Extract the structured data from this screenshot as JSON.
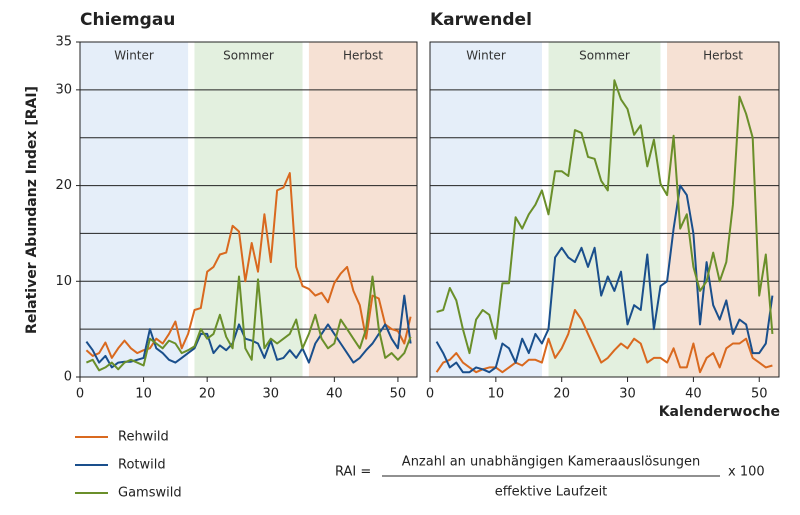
{
  "chart_data": [
    {
      "type": "line",
      "title": "Chiemgau",
      "ylabel": "Relativer Abundanz Index [RAI]",
      "xlim": [
        0,
        53
      ],
      "ylim": [
        0,
        35
      ],
      "xticks": [
        0,
        10,
        20,
        30,
        40,
        50
      ],
      "yticks": [
        0,
        10,
        20,
        30,
        35
      ],
      "grid_lines": [
        5,
        10,
        15,
        20,
        25,
        30
      ],
      "bands": [
        {
          "label": "Winter",
          "from": 0,
          "to": 17,
          "color": "#e5eef9"
        },
        {
          "label": "Sommer",
          "from": 18,
          "to": 35,
          "color": "#e3f0df"
        },
        {
          "label": "Herbst",
          "from": 36,
          "to": 53,
          "color": "#f6e1d4"
        }
      ],
      "x": [
        1,
        2,
        3,
        4,
        5,
        6,
        7,
        8,
        9,
        10,
        11,
        12,
        13,
        14,
        15,
        16,
        17,
        18,
        19,
        20,
        21,
        22,
        23,
        24,
        25,
        26,
        27,
        28,
        29,
        30,
        31,
        32,
        33,
        34,
        35,
        36,
        37,
        38,
        39,
        40,
        41,
        42,
        43,
        44,
        45,
        46,
        47,
        48,
        49,
        50,
        51,
        52
      ],
      "series": [
        {
          "name": "Rehwild",
          "color": "#d9691f",
          "values": [
            2.8,
            2.2,
            2.5,
            3.6,
            2.0,
            3.0,
            3.8,
            3.0,
            2.5,
            2.8,
            3.0,
            4.0,
            3.5,
            4.5,
            5.8,
            3.0,
            4.5,
            7.0,
            7.2,
            11.0,
            11.5,
            12.8,
            13.0,
            15.8,
            15.2,
            10.0,
            14.0,
            11.0,
            17.0,
            12.0,
            19.5,
            19.8,
            21.3,
            11.5,
            9.5,
            9.2,
            8.5,
            8.8,
            7.8,
            9.8,
            10.8,
            11.5,
            9.0,
            7.5,
            4.0,
            8.5,
            8.2,
            5.5,
            5.0,
            4.8,
            3.5,
            6.3
          ]
        },
        {
          "name": "Rotwild",
          "color": "#1a4f8c",
          "values": [
            3.7,
            2.8,
            1.5,
            2.2,
            1.0,
            1.5,
            1.6,
            1.6,
            1.8,
            2.0,
            5.0,
            3.0,
            2.5,
            1.8,
            1.5,
            2.0,
            2.5,
            3.0,
            4.5,
            4.5,
            2.5,
            3.3,
            2.8,
            3.5,
            5.5,
            4.0,
            3.8,
            3.5,
            2.0,
            3.8,
            1.8,
            2.0,
            2.8,
            2.0,
            3.0,
            1.5,
            3.5,
            4.5,
            5.5,
            4.5,
            3.5,
            2.5,
            1.5,
            2.0,
            2.8,
            3.5,
            4.5,
            5.5,
            4.0,
            3.0,
            8.5,
            3.5
          ]
        },
        {
          "name": "Gamswild",
          "color": "#6a8f2a",
          "values": [
            1.5,
            1.8,
            0.7,
            1.0,
            1.5,
            0.8,
            1.5,
            1.8,
            1.5,
            1.2,
            4.0,
            3.5,
            3.0,
            3.8,
            3.5,
            2.5,
            2.8,
            3.2,
            5.0,
            4.0,
            4.5,
            6.5,
            4.2,
            3.0,
            10.5,
            3.0,
            1.8,
            10.2,
            3.0,
            4.0,
            3.5,
            4.0,
            4.5,
            6.0,
            3.0,
            4.5,
            6.5,
            4.0,
            3.0,
            3.5,
            6.0,
            5.0,
            4.0,
            3.0,
            5.0,
            10.5,
            5.0,
            2.0,
            2.5,
            1.8,
            2.5,
            4.2
          ]
        }
      ]
    },
    {
      "type": "line",
      "title": "Karwendel",
      "xlabel": "Kalenderwoche",
      "xlim": [
        0,
        53
      ],
      "ylim": [
        0,
        35
      ],
      "xticks": [
        0,
        10,
        20,
        30,
        40,
        50
      ],
      "grid_lines": [
        5,
        10,
        15,
        20,
        25,
        30
      ],
      "bands": [
        {
          "label": "Winter",
          "from": 0,
          "to": 17,
          "color": "#e5eef9"
        },
        {
          "label": "Sommer",
          "from": 18,
          "to": 35,
          "color": "#e3f0df"
        },
        {
          "label": "Herbst",
          "from": 36,
          "to": 53,
          "color": "#f6e1d4"
        }
      ],
      "x": [
        1,
        2,
        3,
        4,
        5,
        6,
        7,
        8,
        9,
        10,
        11,
        12,
        13,
        14,
        15,
        16,
        17,
        18,
        19,
        20,
        21,
        22,
        23,
        24,
        25,
        26,
        27,
        28,
        29,
        30,
        31,
        32,
        33,
        34,
        35,
        36,
        37,
        38,
        39,
        40,
        41,
        42,
        43,
        44,
        45,
        46,
        47,
        48,
        49,
        50,
        51,
        52
      ],
      "series": [
        {
          "name": "Rehwild",
          "color": "#d9691f",
          "values": [
            0.5,
            1.5,
            1.8,
            2.5,
            1.5,
            1.0,
            0.5,
            0.8,
            1.0,
            1.0,
            0.5,
            1.0,
            1.5,
            1.2,
            1.8,
            1.8,
            1.5,
            4.0,
            2.0,
            3.0,
            4.5,
            7.0,
            6.0,
            4.5,
            3.0,
            1.5,
            2.0,
            2.8,
            3.5,
            3.0,
            4.0,
            3.5,
            1.5,
            2.0,
            2.0,
            1.5,
            3.0,
            1.0,
            1.0,
            3.5,
            0.5,
            2.0,
            2.5,
            1.0,
            3.0,
            3.5,
            3.5,
            4.0,
            2.0,
            1.5,
            1.0,
            1.2
          ]
        },
        {
          "name": "Rotwild",
          "color": "#1a4f8c",
          "values": [
            3.7,
            2.5,
            1.0,
            1.5,
            0.5,
            0.5,
            1.0,
            0.8,
            0.5,
            1.0,
            3.5,
            3.0,
            1.5,
            4.0,
            2.5,
            4.5,
            3.5,
            5.0,
            12.5,
            13.5,
            12.5,
            12.0,
            13.5,
            11.5,
            13.5,
            8.5,
            10.5,
            9.0,
            11.0,
            5.5,
            7.5,
            7.0,
            12.8,
            5.0,
            9.5,
            10.0,
            15.5,
            20.0,
            19.0,
            15.0,
            5.5,
            12.0,
            7.5,
            6.0,
            8.0,
            4.5,
            6.0,
            5.5,
            2.5,
            2.5,
            3.5,
            8.5
          ]
        },
        {
          "name": "Gamswild",
          "color": "#6a8f2a",
          "values": [
            6.8,
            7.0,
            9.3,
            8.0,
            5.0,
            2.5,
            6.0,
            7.0,
            6.5,
            4.0,
            9.8,
            9.8,
            16.7,
            15.5,
            17.0,
            18.0,
            19.5,
            17.0,
            21.5,
            21.5,
            21.0,
            25.8,
            25.5,
            23.0,
            22.8,
            20.5,
            19.5,
            31.0,
            29.0,
            28.0,
            25.3,
            26.3,
            22.0,
            24.8,
            20.2,
            19.0,
            25.2,
            15.5,
            17.0,
            11.5,
            9.0,
            10.0,
            13.0,
            10.0,
            12.0,
            18.0,
            29.3,
            27.5,
            25.0,
            8.5,
            12.8,
            4.5
          ]
        }
      ]
    }
  ],
  "formula": {
    "lhs": "RAI =",
    "numerator": "Anzahl an unabhängigen Kameraauslösungen",
    "denominator": "effektive Laufzeit",
    "factor": "x 100"
  }
}
